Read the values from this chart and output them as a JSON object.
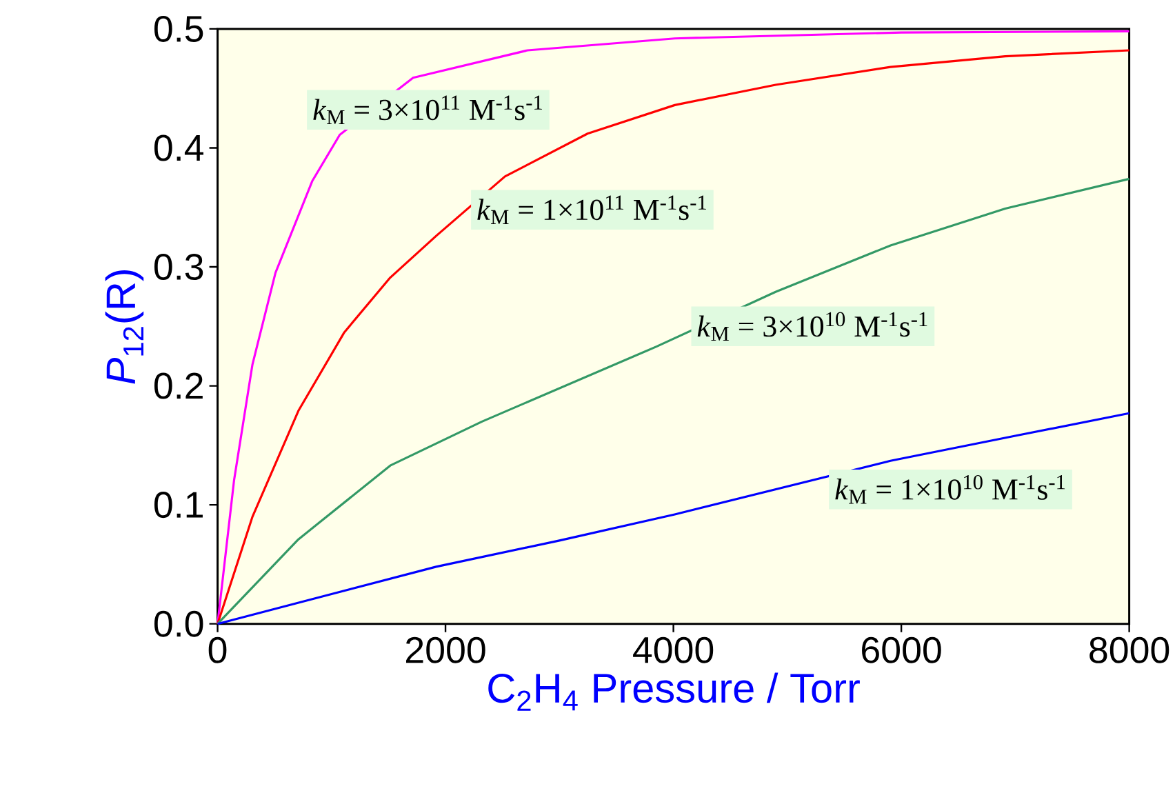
{
  "chart_data": {
    "type": "line",
    "xlabel": "C$_{2}$H$_{4}$ Pressure / Torr",
    "ylabel": "*P*$_{12}$(R)",
    "xlim": [
      0,
      8000
    ],
    "ylim": [
      0,
      0.5
    ],
    "xticks": [
      0,
      2000,
      4000,
      6000,
      8000
    ],
    "yticks": [
      {
        "value": 0,
        "label": "0.0"
      },
      {
        "value": 0.1,
        "label": "0.1"
      },
      {
        "value": 0.2,
        "label": "0.2"
      },
      {
        "value": 0.3,
        "label": "0.3"
      },
      {
        "value": 0.4,
        "label": "0.4"
      },
      {
        "value": 0.5,
        "label": "0.5"
      }
    ],
    "grid": false,
    "legend": false,
    "marker": "none",
    "line_style": "solid",
    "series": [
      {
        "name": "*k*$_{M}$ = 3×10$^{11}$  M$^{-1}$s$^{-1}$",
        "color": "#ff00ff",
        "x": [
          0,
          145,
          306,
          508,
          830,
          1072,
          1716,
          2720,
          4012,
          6000,
          8000
        ],
        "values": [
          0,
          0.121,
          0.218,
          0.295,
          0.372,
          0.411,
          0.459,
          0.482,
          0.492,
          0.497,
          0.498
        ]
      },
      {
        "name": "*k*$_{M}$ = 1×10$^{11}$  M$^{-1}$s$^{-1}$",
        "color": "#ff0000",
        "x": [
          0,
          306,
          709,
          1112,
          1515,
          1918,
          2522,
          3247,
          4012,
          4897,
          5905,
          6912,
          8000
        ],
        "values": [
          0,
          0.09,
          0.179,
          0.245,
          0.291,
          0.326,
          0.376,
          0.412,
          0.436,
          0.453,
          0.468,
          0.477,
          0.482
        ]
      },
      {
        "name": "*k*$_{M}$ = 3×10$^{10}$  M$^{-1}$s$^{-1}$",
        "color": "#339966",
        "x": [
          0,
          709,
          1112,
          1515,
          2320,
          3851,
          4897,
          5905,
          6912,
          8000
        ],
        "values": [
          0,
          0.071,
          0.102,
          0.133,
          0.17,
          0.233,
          0.279,
          0.318,
          0.349,
          0.374
        ]
      },
      {
        "name": "*k*$_{M}$ = 1×10$^{10}$  M$^{-1}$s$^{-1}$",
        "color": "#0000ff",
        "x": [
          0,
          1000,
          1918,
          3000,
          4012,
          5905,
          7000,
          8000
        ],
        "values": [
          0,
          0.025,
          0.048,
          0.07,
          0.092,
          0.137,
          0.158,
          0.177
        ]
      }
    ]
  }
}
